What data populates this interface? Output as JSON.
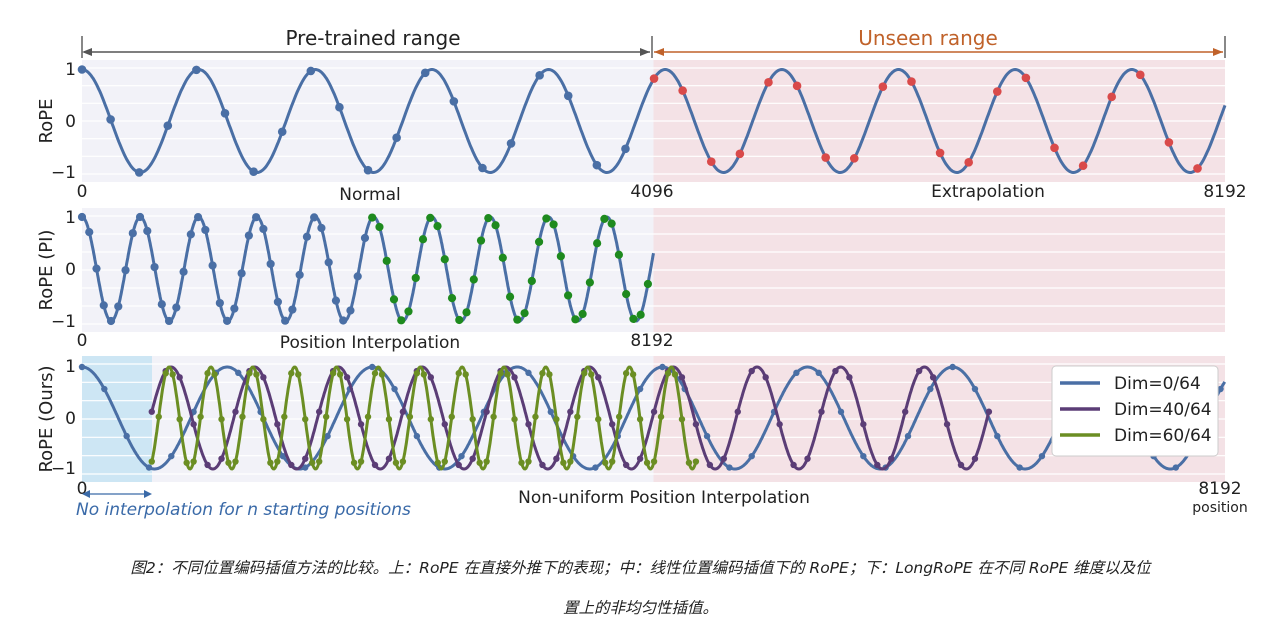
{
  "figure": {
    "range_labels": {
      "pretrained": "Pre-trained range",
      "unseen": "Unseen range"
    },
    "no_interp_note": "No interpolation for n starting positions",
    "position_label": "position",
    "colors": {
      "wave": "#4a6fa5",
      "red_dot": "#d94a4a",
      "green_dot": "#1e8a1e",
      "purple": "#5b3d76",
      "olive": "#6b8e23",
      "range_orange": "#c0622a",
      "pink_bg": "#f4e2e6",
      "gray_bg": "#f2f2f8",
      "blue_bg": "#cde6f4"
    }
  },
  "chart_data": [
    {
      "type": "line",
      "ylabel": "RoPE",
      "x_ticks": [
        "0",
        "4096",
        "8192"
      ],
      "y_ticks": [
        "1",
        "0",
        "−1"
      ],
      "ylim": [
        -1,
        1
      ],
      "xlim": [
        0,
        8192
      ],
      "annotations": [
        "Normal",
        "Extrapolation"
      ],
      "series": [
        {
          "period": 836,
          "phase": 0,
          "x_range": [
            0,
            8192
          ],
          "markers_pretrained": "blue",
          "markers_unseen": "red"
        }
      ]
    },
    {
      "type": "line",
      "ylabel": "RoPE (PI)",
      "x_ticks": [
        "0",
        "8192"
      ],
      "y_ticks": [
        "1",
        "0",
        "−1"
      ],
      "ylim": [
        -1,
        1
      ],
      "xlim": [
        0,
        8192
      ],
      "annotations": [
        "Position Interpolation"
      ],
      "series": [
        {
          "period": 418,
          "phase": 0,
          "x_range": [
            0,
            4096
          ],
          "markers_first_half": "blue",
          "markers_second_half": "green"
        }
      ]
    },
    {
      "type": "line",
      "ylabel": "RoPE (Ours)",
      "x_ticks": [
        "0",
        "8192"
      ],
      "y_ticks": [
        "1",
        "0",
        "−1"
      ],
      "ylim": [
        -1,
        1
      ],
      "xlim": [
        0,
        8192
      ],
      "annotations": [
        "Non-uniform Position Interpolation"
      ],
      "legend": {
        "placement": "right"
      },
      "series": [
        {
          "name": "Dim=0/64",
          "period": 1040,
          "phase": 0,
          "x_range": [
            0,
            8192
          ]
        },
        {
          "name": "Dim=40/64",
          "period": 600,
          "phase": -0.4,
          "x_range": [
            500,
            6500
          ]
        },
        {
          "name": "Dim=60/64",
          "period": 300,
          "phase": -0.5,
          "x_range": [
            500,
            4400
          ]
        }
      ]
    }
  ],
  "caption": {
    "line1": "图2：不同位置编码插值方法的比较。上：RoPE 在直接外推下的表现；中：线性位置编码插值下的 RoPE；下：LongRoPE 在不同 RoPE 维度以及位",
    "line2": "置上的非均匀性插值。"
  }
}
